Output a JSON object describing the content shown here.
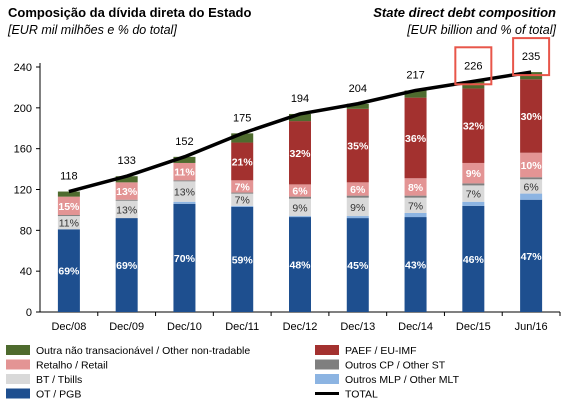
{
  "header": {
    "title_pt": "Composição da dívida direta do Estado",
    "subtitle_pt": "[EUR mil milhões e % do total]",
    "title_en": "State direct debt composition",
    "subtitle_en": "[EUR billion and % of total]"
  },
  "colors": {
    "OT / PGB": "#1e4f8f",
    "Outros MLP / Other MLT": "#8cb4e2",
    "BT / Tbills": "#d9d9d9",
    "Outros CP / Other ST": "#7f7f7f",
    "Retalho / Retail": "#e39494",
    "PAEF / EU-IMF": "#a3312f",
    "Outra não transacionável / Other non-tradable": "#4e6b2e",
    "TOTAL": "#000000",
    "highlight": "#e8564a"
  },
  "chart_data": {
    "type": "bar",
    "stacked": true,
    "categories": [
      "Dec/08",
      "Dec/09",
      "Dec/10",
      "Dec/11",
      "Dec/12",
      "Dec/13",
      "Dec/14",
      "Dec/15",
      "Jun/16"
    ],
    "ylim": [
      0,
      240
    ],
    "yticks": [
      0,
      40,
      80,
      120,
      160,
      200,
      240
    ],
    "grid": false,
    "legend_position": "bottom",
    "series": [
      {
        "name": "OT / PGB",
        "values": [
          81,
          92,
          106,
          103,
          93,
          92,
          93,
          104,
          110
        ],
        "labels": [
          "69%",
          "69%",
          "70%",
          "59%",
          "48%",
          "45%",
          "43%",
          "46%",
          "47%"
        ]
      },
      {
        "name": "Outros MLP / Other MLT",
        "values": [
          0,
          0,
          2,
          1,
          1,
          2,
          4,
          4,
          6
        ],
        "labels": [
          "",
          "",
          "",
          "",
          "",
          "",
          "",
          "",
          ""
        ]
      },
      {
        "name": "BT / Tbills",
        "values": [
          13,
          17,
          20,
          12,
          17,
          18,
          15,
          16,
          14
        ],
        "labels": [
          "11%",
          "13%",
          "13%",
          "7%",
          "9%",
          "9%",
          "7%",
          "7%",
          "6%"
        ]
      },
      {
        "name": "Outros CP / Other ST",
        "values": [
          1,
          1,
          1,
          1,
          2,
          2,
          2,
          2,
          2
        ],
        "labels": [
          "",
          "",
          "",
          "",
          "",
          "",
          "",
          "",
          ""
        ]
      },
      {
        "name": "Retalho / Retail",
        "values": [
          18,
          17,
          17,
          12,
          12,
          13,
          17,
          20,
          24
        ],
        "labels": [
          "15%",
          "13%",
          "11%",
          "7%",
          "6%",
          "6%",
          "8%",
          "9%",
          "10%"
        ]
      },
      {
        "name": "PAEF / EU-IMF",
        "values": [
          0,
          0,
          0,
          37,
          62,
          72,
          79,
          73,
          72
        ],
        "labels": [
          "",
          "",
          "",
          "21%",
          "32%",
          "35%",
          "36%",
          "32%",
          "30%"
        ]
      },
      {
        "name": "Outra não transacionável / Other non-tradable",
        "values": [
          5,
          6,
          6,
          9,
          7,
          5,
          7,
          7,
          7
        ],
        "labels": [
          "",
          "",
          "",
          "",
          "",
          "",
          "",
          "",
          ""
        ]
      }
    ],
    "total": {
      "name": "TOTAL",
      "values": [
        118,
        133,
        152,
        175,
        194,
        204,
        217,
        226,
        235
      ]
    },
    "highlighted_totals": [
      "Dec/15",
      "Jun/16"
    ]
  },
  "legend": {
    "left": [
      "Outra não transacionável / Other non-tradable",
      "Retalho / Retail",
      "BT / Tbills",
      "OT / PGB"
    ],
    "right": [
      "PAEF / EU-IMF",
      "Outros CP / Other ST",
      "Outros MLP / Other MLT",
      "TOTAL"
    ]
  }
}
